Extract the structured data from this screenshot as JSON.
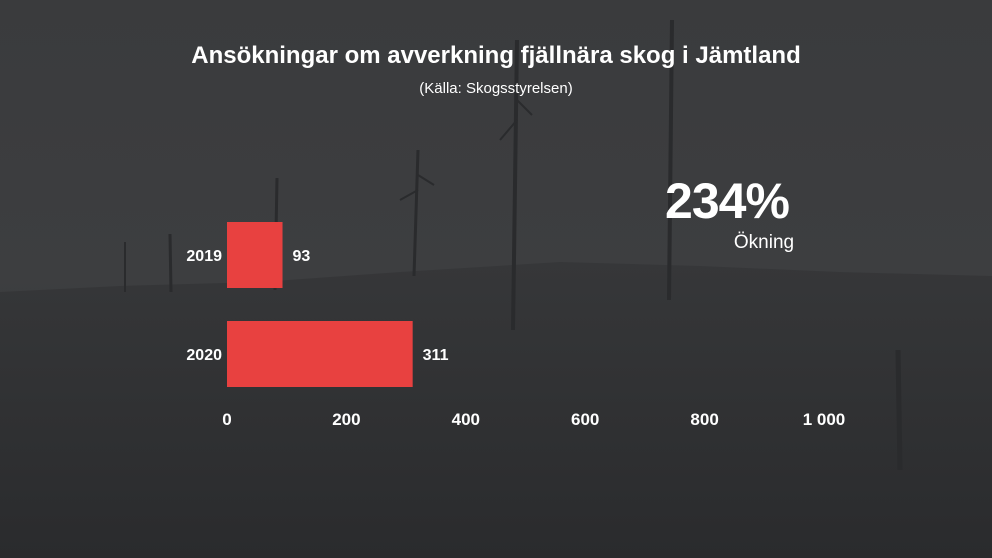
{
  "header": {
    "title": "Ansökningar om avverkning fjällnära skog i Jämtland",
    "subtitle": "(Källa: Skogsstyrelsen)"
  },
  "stat": {
    "value": "234%",
    "label": "Ökning"
  },
  "colors": {
    "bar": "#e84140",
    "text": "#ffffff"
  },
  "chart_data": {
    "type": "bar",
    "orientation": "horizontal",
    "categories": [
      "2019",
      "2020"
    ],
    "values": [
      93,
      311
    ],
    "value_labels": [
      "93",
      "311"
    ],
    "xlim": [
      0,
      1000
    ],
    "x_ticks": [
      0,
      200,
      400,
      600,
      800,
      1000
    ],
    "x_tick_labels": [
      "0",
      "200",
      "400",
      "600",
      "800",
      "1 000"
    ],
    "grid": false
  }
}
